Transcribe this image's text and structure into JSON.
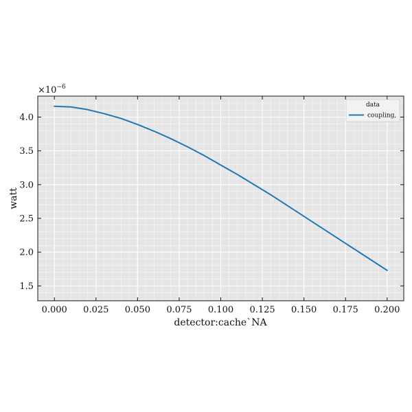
{
  "chart_data": {
    "type": "line",
    "title": "",
    "xlabel": "detector:cache`NA",
    "ylabel": "watt",
    "y_exponent_label": "×10",
    "y_exponent_power": "−6",
    "y_scale_factor": 1e-06,
    "xlim": [
      -0.01,
      0.21
    ],
    "ylim": [
      1.28,
      4.31
    ],
    "x_ticks": [
      0.0,
      0.025,
      0.05,
      0.075,
      0.1,
      0.125,
      0.15,
      0.175,
      0.2
    ],
    "x_tick_labels": [
      "0.000",
      "0.025",
      "0.050",
      "0.075",
      "0.100",
      "0.125",
      "0.150",
      "0.175",
      "0.200"
    ],
    "y_ticks": [
      1.5,
      2.0,
      2.5,
      3.0,
      3.5,
      4.0
    ],
    "y_tick_labels": [
      "1.5",
      "2.0",
      "2.5",
      "3.0",
      "3.5",
      "4.0"
    ],
    "grid": true,
    "legend": {
      "title": "data",
      "placement": "top-right"
    },
    "series": [
      {
        "name": "coupling,",
        "color": "#1f77b4",
        "x": [
          0.0,
          0.01,
          0.02,
          0.03,
          0.04,
          0.05,
          0.06,
          0.07,
          0.08,
          0.09,
          0.1,
          0.11,
          0.12,
          0.13,
          0.14,
          0.15,
          0.16,
          0.17,
          0.18,
          0.19,
          0.2
        ],
        "y": [
          4.16,
          4.15,
          4.11,
          4.05,
          3.98,
          3.89,
          3.79,
          3.68,
          3.56,
          3.43,
          3.29,
          3.15,
          3.0,
          2.85,
          2.69,
          2.53,
          2.37,
          2.21,
          2.05,
          1.89,
          1.73
        ]
      }
    ]
  }
}
